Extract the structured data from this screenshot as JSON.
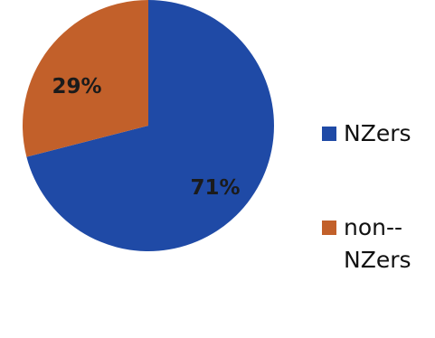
{
  "chart_data": {
    "type": "pie",
    "slices": [
      {
        "label": "NZers",
        "value": 71,
        "display": "71%",
        "color": "#1f4aa6"
      },
      {
        "label": "non-NZers",
        "value": 29,
        "display": "29%",
        "color": "#c2602a"
      }
    ],
    "legend": {
      "placement": "right",
      "entries": [
        "NZers",
        "non-­NZers"
      ]
    },
    "start_angle_deg": 0,
    "direction": "clockwise"
  }
}
